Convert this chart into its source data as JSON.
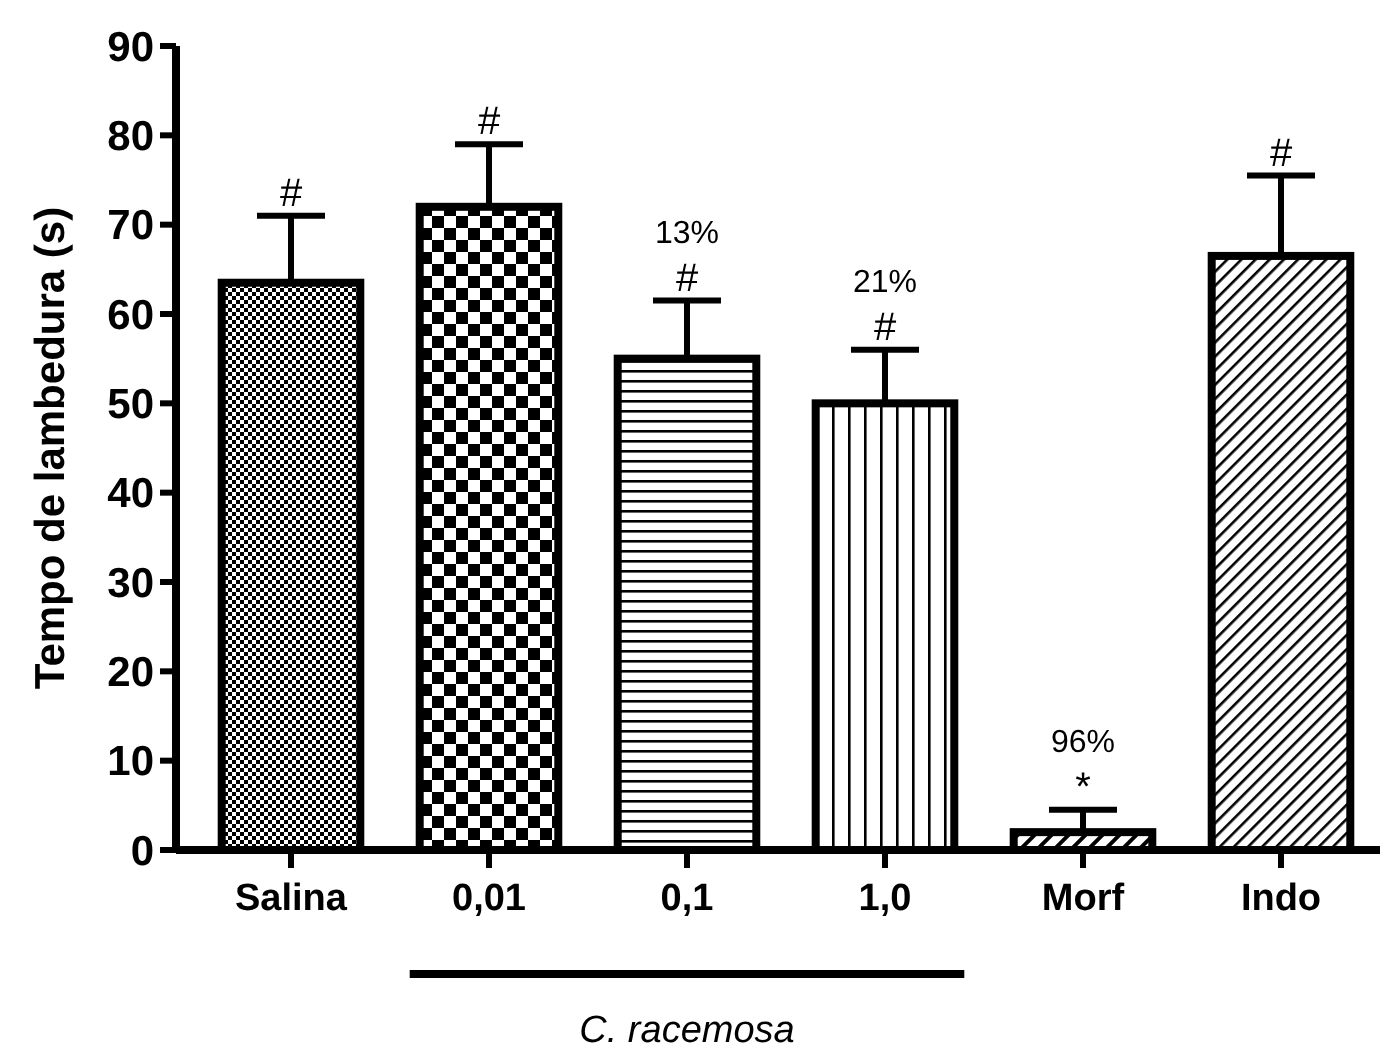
{
  "chart_data": {
    "type": "bar",
    "ylabel": "Tempo de lambedura (s)",
    "categories": [
      "Salina",
      "0,01",
      "0,1",
      "1,0",
      "Morf",
      "Indo"
    ],
    "values": [
      63.5,
      72,
      55,
      50,
      2,
      66.5
    ],
    "errors": [
      7.5,
      7,
      6.5,
      6,
      2.5,
      9
    ],
    "colors": [
      "#000000",
      "#000000",
      "#000000",
      "#000000",
      "#000000",
      "#000000"
    ],
    "ylim": [
      0,
      90
    ],
    "yticks": [
      0,
      10,
      20,
      30,
      40,
      50,
      60,
      70,
      80,
      90
    ],
    "grid": false,
    "annotations": [
      "#",
      "#",
      "#",
      "13%",
      "#",
      "21%",
      "*",
      "96%",
      "#",
      "C. racemosa"
    ]
  }
}
